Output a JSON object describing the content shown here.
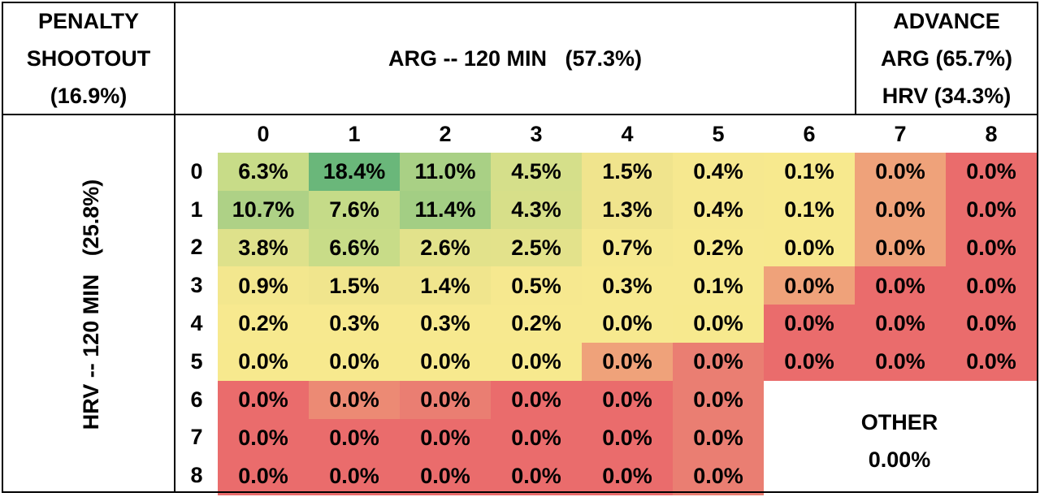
{
  "header": {
    "left_lines": [
      "PENALTY",
      "SHOOTOUT",
      "(16.9%)"
    ],
    "center": "ARG -- 120 MIN   (57.3%)",
    "right_lines": [
      "ADVANCE",
      "ARG (65.7%)",
      "HRV (34.3%)"
    ]
  },
  "side_label": "HRV -- 120 MIN   (25.8%)",
  "other": {
    "label": "OTHER",
    "value": "0.00%"
  },
  "chart_data": {
    "type": "heatmap",
    "x_labels": [
      "0",
      "1",
      "2",
      "3",
      "4",
      "5",
      "6",
      "7",
      "8"
    ],
    "y_labels": [
      "0",
      "1",
      "2",
      "3",
      "4",
      "5",
      "6",
      "7",
      "8"
    ],
    "values": [
      [
        6.3,
        18.4,
        11.0,
        4.5,
        1.5,
        0.4,
        0.1,
        0.0,
        0.0
      ],
      [
        10.7,
        7.6,
        11.4,
        4.3,
        1.3,
        0.4,
        0.1,
        0.0,
        0.0
      ],
      [
        3.8,
        6.6,
        2.6,
        2.5,
        0.7,
        0.2,
        0.0,
        0.0,
        0.0
      ],
      [
        0.9,
        1.5,
        1.4,
        0.5,
        0.3,
        0.1,
        0.0,
        0.0,
        0.0
      ],
      [
        0.2,
        0.3,
        0.3,
        0.2,
        0.0,
        0.0,
        0.0,
        0.0,
        0.0
      ],
      [
        0.0,
        0.0,
        0.0,
        0.0,
        0.0,
        0.0,
        0.0,
        0.0,
        0.0
      ],
      [
        0.0,
        0.0,
        0.0,
        0.0,
        0.0,
        0.0,
        null,
        null,
        null
      ],
      [
        0.0,
        0.0,
        0.0,
        0.0,
        0.0,
        0.0,
        null,
        null,
        null
      ],
      [
        0.0,
        0.0,
        0.0,
        0.0,
        0.0,
        0.0,
        null,
        null,
        null
      ]
    ],
    "labels": [
      [
        "6.3%",
        "18.4%",
        "11.0%",
        "4.5%",
        "1.5%",
        "0.4%",
        "0.1%",
        "0.0%",
        "0.0%"
      ],
      [
        "10.7%",
        "7.6%",
        "11.4%",
        "4.3%",
        "1.3%",
        "0.4%",
        "0.1%",
        "0.0%",
        "0.0%"
      ],
      [
        "3.8%",
        "6.6%",
        "2.6%",
        "2.5%",
        "0.7%",
        "0.2%",
        "0.0%",
        "0.0%",
        "0.0%"
      ],
      [
        "0.9%",
        "1.5%",
        "1.4%",
        "0.5%",
        "0.3%",
        "0.1%",
        "0.0%",
        "0.0%",
        "0.0%"
      ],
      [
        "0.2%",
        "0.3%",
        "0.3%",
        "0.2%",
        "0.0%",
        "0.0%",
        "0.0%",
        "0.0%",
        "0.0%"
      ],
      [
        "0.0%",
        "0.0%",
        "0.0%",
        "0.0%",
        "0.0%",
        "0.0%",
        "0.0%",
        "0.0%",
        "0.0%"
      ],
      [
        "0.0%",
        "0.0%",
        "0.0%",
        "0.0%",
        "0.0%",
        "0.0%",
        "",
        "",
        ""
      ],
      [
        "0.0%",
        "0.0%",
        "0.0%",
        "0.0%",
        "0.0%",
        "0.0%",
        "",
        "",
        ""
      ],
      [
        "0.0%",
        "0.0%",
        "0.0%",
        "0.0%",
        "0.0%",
        "0.0%",
        "",
        "",
        ""
      ]
    ],
    "colors": [
      [
        "#c8dc88",
        "#6ab77a",
        "#a9d085",
        "#d5df8a",
        "#f0e48d",
        "#f6e88f",
        "#f7e98e",
        "#efa27a",
        "#ea6c6c"
      ],
      [
        "#aed186",
        "#c5db88",
        "#a3ce84",
        "#d7df89",
        "#f0e48d",
        "#f6e88f",
        "#f7e98e",
        "#efa27a",
        "#ea6c6c"
      ],
      [
        "#dee18b",
        "#c8dc88",
        "#e2e28b",
        "#e3e28b",
        "#f5e88f",
        "#f7e98f",
        "#f7e98e",
        "#efa27a",
        "#ea6c6c"
      ],
      [
        "#f3e78e",
        "#f0e58d",
        "#f0e58d",
        "#f6e88f",
        "#f7e98f",
        "#f7e98f",
        "#efa27a",
        "#ea6c6c",
        "#ea6c6c"
      ],
      [
        "#f7e98f",
        "#f7e98f",
        "#f7e98f",
        "#f7e98f",
        "#f7e98f",
        "#f7e98e",
        "#ea6c6c",
        "#ea6c6c",
        "#ea6c6c"
      ],
      [
        "#f7e98e",
        "#f7e98e",
        "#f7e98e",
        "#f7e98e",
        "#efa27a",
        "#ea7e72",
        "#ea6c6c",
        "#ea6c6c",
        "#ea6c6c"
      ],
      [
        "#ea6c6c",
        "#ec8a74",
        "#ea7e72",
        "#ea6c6c",
        "#ea6c6c",
        "#ea7e72",
        null,
        null,
        null
      ],
      [
        "#ea6c6c",
        "#ea6c6c",
        "#ea6c6c",
        "#ea6c6c",
        "#ea6c6c",
        "#ea7e72",
        null,
        null,
        null
      ],
      [
        "#ea6c6c",
        "#ea6c6c",
        "#ea6c6c",
        "#ea6c6c",
        "#ea6c6c",
        "#ea7e72",
        null,
        null,
        null
      ]
    ]
  }
}
